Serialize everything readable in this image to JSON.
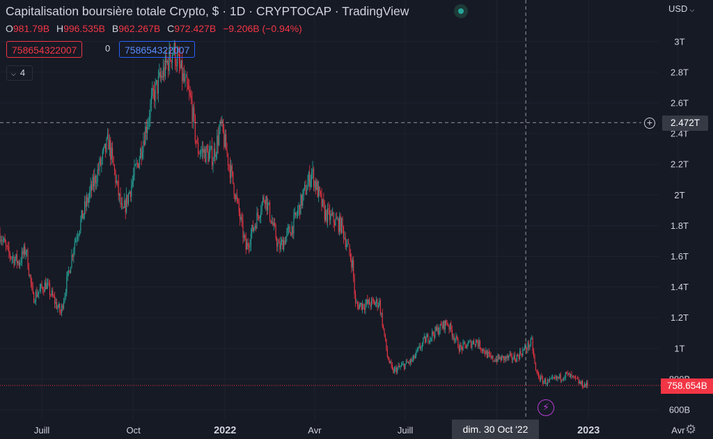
{
  "header": {
    "title": "Capitalisation boursière totale Crypto, $ · 1D · CRYPTOCAP · TradingView",
    "ohlc": [
      {
        "key": "O",
        "value": "981.79B"
      },
      {
        "key": "H",
        "value": "996.535B"
      },
      {
        "key": "B",
        "value": "962.267B"
      },
      {
        "key": "C",
        "value": "972.427B"
      }
    ],
    "change": "−9.206B (−0.94%)"
  },
  "volume": {
    "left": "758654322007",
    "middle": "0",
    "right": "758654322007"
  },
  "indicators_button": {
    "count": "4"
  },
  "price_scale": {
    "currency": "USD"
  },
  "crosshair": {
    "price_label": "2.472T",
    "date_label": "dim. 30 Oct '22"
  },
  "last_price": {
    "label": "758.654B"
  },
  "colors": {
    "up": "#26a69a",
    "down": "#f23645",
    "background": "#161a25",
    "grid": "#1f2330",
    "text": "#d1d4dc"
  },
  "icons": {
    "live": "live-dot-icon",
    "plus": "plus-circle-icon",
    "event": "lightning-icon",
    "settings": "gear-icon"
  },
  "chart_data": {
    "type": "candlestick",
    "title": "Capitalisation boursière totale Crypto, $ · 1D · CRYPTOCAP",
    "y_unit": "USD",
    "ylim": [
      580,
      3150
    ],
    "y_ticks": [
      {
        "value": 600,
        "label": "600B"
      },
      {
        "value": 800,
        "label": "800B"
      },
      {
        "value": 1000,
        "label": "1T"
      },
      {
        "value": 1200,
        "label": "1.2T"
      },
      {
        "value": 1400,
        "label": "1.4T"
      },
      {
        "value": 1600,
        "label": "1.6T"
      },
      {
        "value": 1800,
        "label": "1.8T"
      },
      {
        "value": 2000,
        "label": "2T"
      },
      {
        "value": 2200,
        "label": "2.2T"
      },
      {
        "value": 2400,
        "label": "2.4T"
      },
      {
        "value": 2600,
        "label": "2.6T"
      },
      {
        "value": 2800,
        "label": "2.8T"
      },
      {
        "value": 3000,
        "label": "3T"
      }
    ],
    "x_ticks": [
      {
        "date": "2021-07-01",
        "label": "Juill",
        "bold": false
      },
      {
        "date": "2021-10-01",
        "label": "Oct",
        "bold": false
      },
      {
        "date": "2022-01-01",
        "label": "2022",
        "bold": true
      },
      {
        "date": "2022-04-01",
        "label": "Avr",
        "bold": false
      },
      {
        "date": "2022-07-01",
        "label": "Juill",
        "bold": false
      },
      {
        "date": "2022-10-01",
        "label": "Oct",
        "bold": false
      },
      {
        "date": "2023-01-01",
        "label": "2023",
        "bold": true
      },
      {
        "date": "2023-04-01",
        "label": "Avr",
        "bold": false
      }
    ],
    "xlim": [
      "2021-05-20",
      "2023-05-06"
    ],
    "crosshair": {
      "date": "2022-10-30",
      "value": 2472
    },
    "last_value": 758.654,
    "path": [
      {
        "date": "2021-05-20",
        "value": 1750
      },
      {
        "date": "2021-05-28",
        "value": 1620
      },
      {
        "date": "2021-06-08",
        "value": 1560
      },
      {
        "date": "2021-06-15",
        "value": 1650
      },
      {
        "date": "2021-06-22",
        "value": 1330
      },
      {
        "date": "2021-07-05",
        "value": 1420
      },
      {
        "date": "2021-07-20",
        "value": 1230
      },
      {
        "date": "2021-08-03",
        "value": 1700
      },
      {
        "date": "2021-08-15",
        "value": 1950
      },
      {
        "date": "2021-09-06",
        "value": 2350
      },
      {
        "date": "2021-09-20",
        "value": 1870
      },
      {
        "date": "2021-10-05",
        "value": 2200
      },
      {
        "date": "2021-10-21",
        "value": 2650
      },
      {
        "date": "2021-11-10",
        "value": 2950
      },
      {
        "date": "2021-11-28",
        "value": 2600
      },
      {
        "date": "2021-12-04",
        "value": 2300
      },
      {
        "date": "2021-12-20",
        "value": 2250
      },
      {
        "date": "2021-12-28",
        "value": 2450
      },
      {
        "date": "2022-01-10",
        "value": 2050
      },
      {
        "date": "2022-01-22",
        "value": 1650
      },
      {
        "date": "2022-02-10",
        "value": 2000
      },
      {
        "date": "2022-02-24",
        "value": 1650
      },
      {
        "date": "2022-03-10",
        "value": 1800
      },
      {
        "date": "2022-03-29",
        "value": 2150
      },
      {
        "date": "2022-04-11",
        "value": 1880
      },
      {
        "date": "2022-04-28",
        "value": 1800
      },
      {
        "date": "2022-05-09",
        "value": 1550
      },
      {
        "date": "2022-05-12",
        "value": 1280
      },
      {
        "date": "2022-06-05",
        "value": 1300
      },
      {
        "date": "2022-06-13",
        "value": 950
      },
      {
        "date": "2022-06-18",
        "value": 850
      },
      {
        "date": "2022-07-08",
        "value": 920
      },
      {
        "date": "2022-07-20",
        "value": 1050
      },
      {
        "date": "2022-08-12",
        "value": 1170
      },
      {
        "date": "2022-08-25",
        "value": 1000
      },
      {
        "date": "2022-09-10",
        "value": 1050
      },
      {
        "date": "2022-09-25",
        "value": 930
      },
      {
        "date": "2022-10-20",
        "value": 940
      },
      {
        "date": "2022-11-05",
        "value": 1040
      },
      {
        "date": "2022-11-09",
        "value": 850
      },
      {
        "date": "2022-11-15",
        "value": 790
      },
      {
        "date": "2022-11-22",
        "value": 780
      },
      {
        "date": "2022-12-10",
        "value": 830
      },
      {
        "date": "2022-12-20",
        "value": 790
      },
      {
        "date": "2022-12-25",
        "value": 765
      },
      {
        "date": "2022-12-31",
        "value": 760
      }
    ]
  }
}
